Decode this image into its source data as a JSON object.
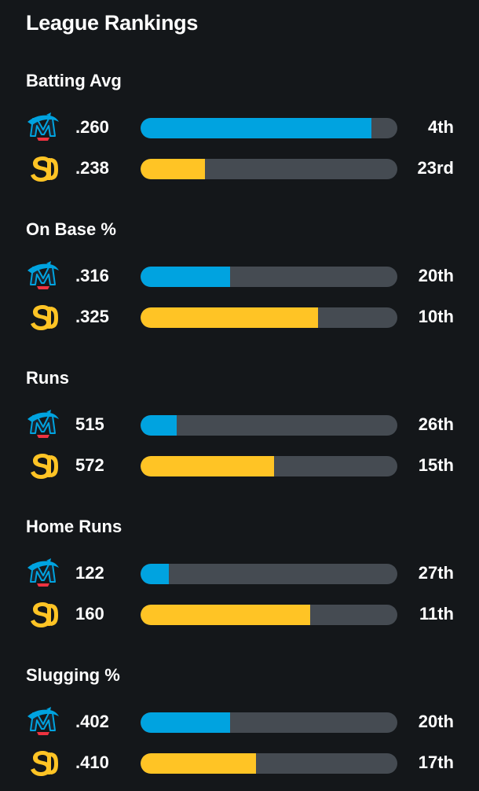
{
  "title": "League Rankings",
  "colors": {
    "background": "#14171a",
    "track": "#454b52",
    "marlins": "#00a3e0",
    "padres": "#ffc425"
  },
  "teams": {
    "marlins": {
      "icon": "marlins-logo-icon"
    },
    "padres": {
      "icon": "padres-logo-icon"
    }
  },
  "sections": [
    {
      "label": "Batting Avg",
      "rows": [
        {
          "team": "marlins",
          "value": ".260",
          "rank": "4th",
          "fill_fraction": 0.9
        },
        {
          "team": "padres",
          "value": ".238",
          "rank": "23rd",
          "fill_fraction": 0.25
        }
      ]
    },
    {
      "label": "On Base %",
      "rows": [
        {
          "team": "marlins",
          "value": ".316",
          "rank": "20th",
          "fill_fraction": 0.35
        },
        {
          "team": "padres",
          "value": ".325",
          "rank": "10th",
          "fill_fraction": 0.69
        }
      ]
    },
    {
      "label": "Runs",
      "rows": [
        {
          "team": "marlins",
          "value": "515",
          "rank": "26th",
          "fill_fraction": 0.14
        },
        {
          "team": "padres",
          "value": "572",
          "rank": "15th",
          "fill_fraction": 0.52
        }
      ]
    },
    {
      "label": "Home Runs",
      "rows": [
        {
          "team": "marlins",
          "value": "122",
          "rank": "27th",
          "fill_fraction": 0.11
        },
        {
          "team": "padres",
          "value": "160",
          "rank": "11th",
          "fill_fraction": 0.66
        }
      ]
    },
    {
      "label": "Slugging %",
      "rows": [
        {
          "team": "marlins",
          "value": ".402",
          "rank": "20th",
          "fill_fraction": 0.35
        },
        {
          "team": "padres",
          "value": ".410",
          "rank": "17th",
          "fill_fraction": 0.45
        }
      ]
    }
  ]
}
